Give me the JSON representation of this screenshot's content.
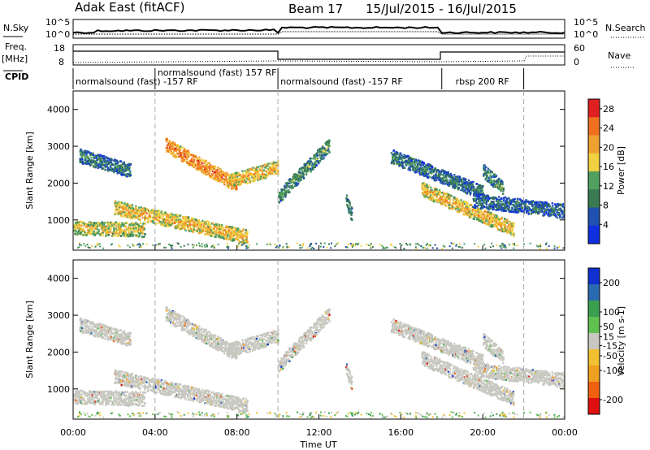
{
  "header": {
    "station": "Adak East (fitACF)",
    "beam": "Beam 17",
    "date_range": "15/Jul/2015 - 16/Jul/2015"
  },
  "labels": {
    "nsky": "N.Sky",
    "nsearch": "N.Search",
    "freq_line1": "Freq.",
    "freq_line2": "[MHz]",
    "nave": "Nave",
    "cpid": "CPID",
    "nsky_ticks": [
      "10^5",
      "10^0"
    ],
    "freq_ticks": [
      "18",
      "8"
    ],
    "nave_ticks": [
      "60",
      "0"
    ],
    "nsearch_ticks": [
      "10^5",
      "10^0"
    ]
  },
  "cpid_segments": [
    {
      "label": "normalsound (fast) -157 RF",
      "start_h": 0,
      "end_h": 4
    },
    {
      "label": "normalsound (fast) 157 RF",
      "start_h": 4,
      "end_h": 10
    },
    {
      "label": "normalsound (fast) -157 RF",
      "start_h": 10,
      "end_h": 18
    },
    {
      "label": "rbsp 200 RF",
      "start_h": 18,
      "end_h": 22
    }
  ],
  "colors": {
    "power_scale": [
      "#1030e0",
      "#2050b0",
      "#3a7a50",
      "#50a060",
      "#f0d040",
      "#f0a030",
      "#f07020",
      "#e02020"
    ],
    "velocity_scale": [
      "#1030d0",
      "#2a6ab0",
      "#3aa050",
      "#60c050",
      "#c8c8c0",
      "#f0c030",
      "#f0a020",
      "#f06010",
      "#e01010"
    ]
  },
  "chart_data": [
    {
      "type": "heatmap",
      "title": "Power",
      "xlabel": "",
      "ylabel": "Slant Range [km]",
      "xlim": [
        "00:00",
        "00:00"
      ],
      "ylim": [
        180,
        4500
      ],
      "x_ticks": [
        "00:00",
        "04:00",
        "08:00",
        "12:00",
        "16:00",
        "20:00",
        "00:00"
      ],
      "y_ticks": [
        1000,
        2000,
        3000,
        4000
      ],
      "colorbar_label": "Power [dB]",
      "colorbar_ticks": [
        4,
        8,
        12,
        16,
        20,
        24,
        28
      ],
      "colorbar_range": [
        0,
        30
      ],
      "echo_bands": [
        {
          "t_start": 0.0,
          "t_end": 3.5,
          "r_start": 750,
          "r_end": 700,
          "intensity": 18
        },
        {
          "t_start": 0.3,
          "t_end": 2.8,
          "r_start": 2700,
          "r_end": 2300,
          "intensity": 10
        },
        {
          "t_start": 2.0,
          "t_end": 8.5,
          "r_start": 1300,
          "r_end": 500,
          "intensity": 20
        },
        {
          "t_start": 4.5,
          "t_end": 8.0,
          "r_start": 3000,
          "r_end": 1900,
          "intensity": 24
        },
        {
          "t_start": 7.5,
          "t_end": 10.0,
          "r_start": 2000,
          "r_end": 2400,
          "intensity": 20
        },
        {
          "t_start": 10.0,
          "t_end": 12.5,
          "r_start": 1600,
          "r_end": 3000,
          "intensity": 12
        },
        {
          "t_start": 13.3,
          "t_end": 13.6,
          "r_start": 1500,
          "r_end": 1100,
          "intensity": 11
        },
        {
          "t_start": 15.5,
          "t_end": 20.0,
          "r_start": 2700,
          "r_end": 1700,
          "intensity": 10
        },
        {
          "t_start": 17.0,
          "t_end": 21.5,
          "r_start": 1800,
          "r_end": 700,
          "intensity": 20
        },
        {
          "t_start": 19.5,
          "t_end": 24.0,
          "r_start": 1500,
          "r_end": 1200,
          "intensity": 9
        },
        {
          "t_start": 20.0,
          "t_end": 21.0,
          "r_start": 2300,
          "r_end": 1800,
          "intensity": 12
        }
      ]
    },
    {
      "type": "heatmap",
      "title": "Velocity",
      "xlabel": "Time UT",
      "ylabel": "Slant Range [km]",
      "xlim": [
        "00:00",
        "00:00"
      ],
      "ylim": [
        180,
        4500
      ],
      "x_ticks": [
        "00:00",
        "04:00",
        "08:00",
        "12:00",
        "16:00",
        "20:00",
        "00:00"
      ],
      "y_ticks": [
        1000,
        2000,
        3000,
        4000
      ],
      "colorbar_label": "Velocity [m s-1]",
      "colorbar_ticks": [
        200,
        100,
        50,
        15,
        -15,
        -50,
        -100,
        -200
      ],
      "colorbar_range": [
        -250,
        250
      ],
      "dominant_value": 0
    }
  ]
}
